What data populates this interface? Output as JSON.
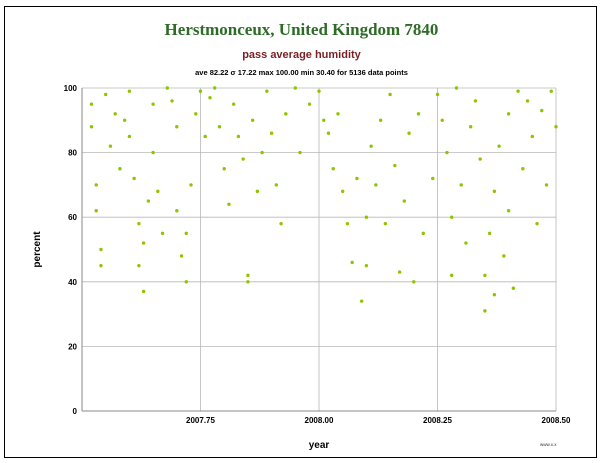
{
  "chart_data": {
    "type": "scatter",
    "title": "Herstmonceux, United Kingdom 7840",
    "subtitle": "pass average humidity",
    "stats": "ave 82.22 σ 17.22 max 100.00 min 30.40 for 5136 data points",
    "xlabel": "year",
    "ylabel": "percent",
    "xlim": [
      2007.5,
      2008.5
    ],
    "ylim": [
      0,
      100
    ],
    "x_ticks": [
      "2007.75",
      "2008.00",
      "2008.25",
      "2008.50"
    ],
    "x_tick_values": [
      2007.75,
      2008.0,
      2008.25,
      2008.5
    ],
    "y_ticks": [
      "0",
      "20",
      "40",
      "60",
      "80",
      "100"
    ],
    "y_tick_values": [
      0,
      20,
      40,
      60,
      80,
      100
    ],
    "grid": true,
    "point_color": "#8fc400",
    "n_points": 5136,
    "ave": 82.22,
    "sigma": 17.22,
    "max": 100.0,
    "min": 30.4,
    "points": [
      [
        2007.52,
        95
      ],
      [
        2007.52,
        88
      ],
      [
        2007.53,
        70
      ],
      [
        2007.53,
        62
      ],
      [
        2007.54,
        45
      ],
      [
        2007.54,
        50
      ],
      [
        2007.55,
        98
      ],
      [
        2007.56,
        82
      ],
      [
        2007.57,
        92
      ],
      [
        2007.58,
        75
      ],
      [
        2007.59,
        90
      ],
      [
        2007.6,
        99
      ],
      [
        2007.6,
        85
      ],
      [
        2007.61,
        72
      ],
      [
        2007.62,
        58
      ],
      [
        2007.62,
        45
      ],
      [
        2007.63,
        37
      ],
      [
        2007.63,
        52
      ],
      [
        2007.64,
        65
      ],
      [
        2007.65,
        80
      ],
      [
        2007.65,
        95
      ],
      [
        2007.66,
        68
      ],
      [
        2007.67,
        55
      ],
      [
        2007.68,
        100
      ],
      [
        2007.69,
        96
      ],
      [
        2007.7,
        88
      ],
      [
        2007.7,
        62
      ],
      [
        2007.71,
        48
      ],
      [
        2007.72,
        40
      ],
      [
        2007.72,
        55
      ],
      [
        2007.73,
        70
      ],
      [
        2007.74,
        92
      ],
      [
        2007.75,
        99
      ],
      [
        2007.76,
        85
      ],
      [
        2007.77,
        97
      ],
      [
        2007.78,
        100
      ],
      [
        2007.79,
        88
      ],
      [
        2007.8,
        75
      ],
      [
        2007.81,
        64
      ],
      [
        2007.82,
        95
      ],
      [
        2007.83,
        85
      ],
      [
        2007.84,
        78
      ],
      [
        2007.85,
        42
      ],
      [
        2007.85,
        40
      ],
      [
        2007.86,
        90
      ],
      [
        2007.87,
        68
      ],
      [
        2007.88,
        80
      ],
      [
        2007.89,
        99
      ],
      [
        2007.9,
        86
      ],
      [
        2007.91,
        70
      ],
      [
        2007.92,
        58
      ],
      [
        2007.93,
        92
      ],
      [
        2007.95,
        100
      ],
      [
        2007.96,
        80
      ],
      [
        2007.98,
        95
      ],
      [
        2008.0,
        99
      ],
      [
        2008.01,
        90
      ],
      [
        2008.02,
        86
      ],
      [
        2008.03,
        75
      ],
      [
        2008.04,
        92
      ],
      [
        2008.05,
        68
      ],
      [
        2008.06,
        58
      ],
      [
        2008.07,
        46
      ],
      [
        2008.08,
        72
      ],
      [
        2008.09,
        34
      ],
      [
        2008.1,
        60
      ],
      [
        2008.1,
        45
      ],
      [
        2008.11,
        82
      ],
      [
        2008.12,
        70
      ],
      [
        2008.13,
        90
      ],
      [
        2008.14,
        58
      ],
      [
        2008.15,
        98
      ],
      [
        2008.16,
        76
      ],
      [
        2008.17,
        43
      ],
      [
        2008.18,
        65
      ],
      [
        2008.19,
        86
      ],
      [
        2008.2,
        40
      ],
      [
        2008.21,
        92
      ],
      [
        2008.22,
        55
      ],
      [
        2008.24,
        72
      ],
      [
        2008.25,
        98
      ],
      [
        2008.26,
        90
      ],
      [
        2008.27,
        80
      ],
      [
        2008.28,
        42
      ],
      [
        2008.28,
        60
      ],
      [
        2008.29,
        100
      ],
      [
        2008.3,
        70
      ],
      [
        2008.31,
        52
      ],
      [
        2008.32,
        88
      ],
      [
        2008.33,
        96
      ],
      [
        2008.34,
        78
      ],
      [
        2008.35,
        42
      ],
      [
        2008.35,
        31
      ],
      [
        2008.36,
        55
      ],
      [
        2008.37,
        36
      ],
      [
        2008.37,
        68
      ],
      [
        2008.38,
        82
      ],
      [
        2008.39,
        48
      ],
      [
        2008.4,
        62
      ],
      [
        2008.4,
        92
      ],
      [
        2008.41,
        38
      ],
      [
        2008.42,
        99
      ],
      [
        2008.43,
        75
      ],
      [
        2008.44,
        96
      ],
      [
        2008.45,
        85
      ],
      [
        2008.46,
        58
      ],
      [
        2008.47,
        93
      ],
      [
        2008.48,
        70
      ],
      [
        2008.49,
        99
      ],
      [
        2008.5,
        88
      ]
    ]
  },
  "footer": {
    "credit": "www.x.x"
  }
}
